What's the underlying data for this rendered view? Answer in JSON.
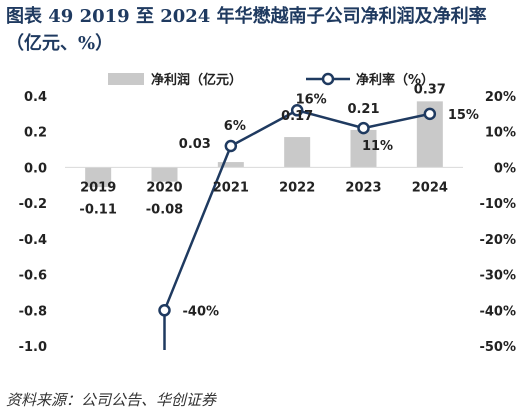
{
  "title": "图表 49 2019 至 2024 年华懋越南子公司净利润及净利率（亿元、%）",
  "source": "资料来源：公司公告、华创证券",
  "colors": {
    "bar": "#c9c9c9",
    "line": "#1f3a60",
    "marker_fill": "#ffffff"
  },
  "chart_data": {
    "type": "bar+line",
    "categories": [
      "2019",
      "2020",
      "2021",
      "2022",
      "2023",
      "2024"
    ],
    "series": [
      {
        "name": "净利润（亿元）",
        "type": "bar",
        "axis": "left",
        "values": [
          -0.11,
          -0.08,
          0.03,
          0.17,
          0.21,
          0.37
        ],
        "labels": [
          "-0.11",
          "-0.08",
          "0.03",
          "0.17",
          "0.21",
          "0.37"
        ]
      },
      {
        "name": "净利率（%）",
        "type": "line",
        "axis": "right",
        "values": [
          null,
          -40,
          6,
          16,
          11,
          15
        ],
        "labels": [
          "",
          "-40%",
          "6%",
          "16%",
          "11%",
          "15%"
        ]
      }
    ],
    "left_axis": {
      "ylim": [
        -1.0,
        0.4
      ],
      "ticks": [
        "0.4",
        "0.2",
        "0.0",
        "-0.2",
        "-0.4",
        "-0.6",
        "-0.8",
        "-1.0"
      ],
      "tick_values": [
        0.4,
        0.2,
        0.0,
        -0.2,
        -0.4,
        -0.6,
        -0.8,
        -1.0
      ]
    },
    "right_axis": {
      "ylim": [
        -50,
        20
      ],
      "ticks": [
        "20%",
        "10%",
        "0%",
        "-10%",
        "-20%",
        "-30%",
        "-40%",
        "-50%"
      ],
      "tick_values": [
        20,
        10,
        0,
        -10,
        -20,
        -30,
        -40,
        -50
      ]
    },
    "line_extends_below_axis": true,
    "legend_position": "top",
    "grid": false
  }
}
